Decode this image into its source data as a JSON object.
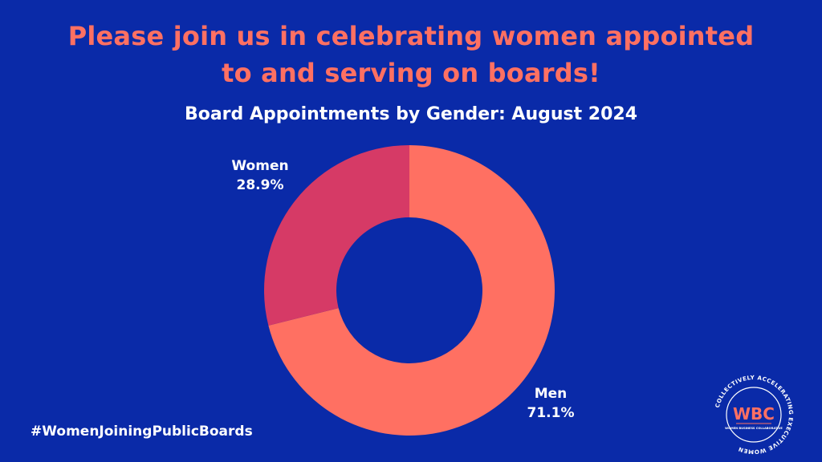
{
  "headline": {
    "line1": "Please join us in celebrating women appointed",
    "line2": "to and serving on boards!"
  },
  "hashtag": "#WomenJoiningPublicBoards",
  "logo": {
    "monogram": "WBC",
    "ring_text": "COLLECTIVELY ACCELERATING EXECUTIVE WOMEN",
    "sub_text": "WOMEN BUSINESS COLLABORATIVE"
  },
  "colors": {
    "background": "#0a2aa8",
    "accent": "#ff7062",
    "men": "#ff7062",
    "women": "#d63a66"
  },
  "chart_data": {
    "type": "pie",
    "title": "Board Appointments by Gender: August 2024",
    "donut": true,
    "slices": [
      {
        "label": "Men",
        "value": 71.1,
        "display": "71.1%",
        "color": "#ff7062"
      },
      {
        "label": "Women",
        "value": 28.9,
        "display": "28.9%",
        "color": "#d63a66"
      }
    ]
  }
}
